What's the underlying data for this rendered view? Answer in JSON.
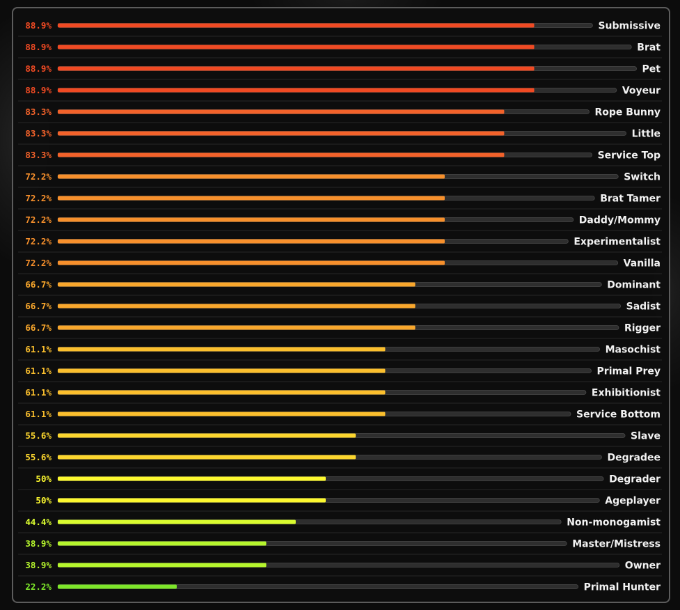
{
  "chart_data": {
    "type": "bar",
    "orientation": "horizontal",
    "title": "",
    "xlabel": "",
    "ylabel": "",
    "xlim": [
      0,
      100
    ],
    "grid": false,
    "legend": "none",
    "series": [
      {
        "name": "Submissive",
        "value": 88.9,
        "label": "88.9%",
        "color": "#f04a23"
      },
      {
        "name": "Brat",
        "value": 88.9,
        "label": "88.9%",
        "color": "#f04a23"
      },
      {
        "name": "Pet",
        "value": 88.9,
        "label": "88.9%",
        "color": "#f04a23"
      },
      {
        "name": "Voyeur",
        "value": 88.9,
        "label": "88.9%",
        "color": "#f04a23"
      },
      {
        "name": "Rope Bunny",
        "value": 83.3,
        "label": "83.3%",
        "color": "#f3622a"
      },
      {
        "name": "Little",
        "value": 83.3,
        "label": "83.3%",
        "color": "#f3622a"
      },
      {
        "name": "Service Top",
        "value": 83.3,
        "label": "83.3%",
        "color": "#f3622a"
      },
      {
        "name": "Switch",
        "value": 72.2,
        "label": "72.2%",
        "color": "#f7902c"
      },
      {
        "name": "Brat Tamer",
        "value": 72.2,
        "label": "72.2%",
        "color": "#f7902c"
      },
      {
        "name": "Daddy/Mommy",
        "value": 72.2,
        "label": "72.2%",
        "color": "#f7902c"
      },
      {
        "name": "Experimentalist",
        "value": 72.2,
        "label": "72.2%",
        "color": "#f7902c"
      },
      {
        "name": "Vanilla",
        "value": 72.2,
        "label": "72.2%",
        "color": "#f7902c"
      },
      {
        "name": "Dominant",
        "value": 66.7,
        "label": "66.7%",
        "color": "#f9a72c"
      },
      {
        "name": "Sadist",
        "value": 66.7,
        "label": "66.7%",
        "color": "#f9a72c"
      },
      {
        "name": "Rigger",
        "value": 66.7,
        "label": "66.7%",
        "color": "#f9a72c"
      },
      {
        "name": "Masochist",
        "value": 61.1,
        "label": "61.1%",
        "color": "#fbbf2d"
      },
      {
        "name": "Primal Prey",
        "value": 61.1,
        "label": "61.1%",
        "color": "#fbbf2d"
      },
      {
        "name": "Exhibitionist",
        "value": 61.1,
        "label": "61.1%",
        "color": "#fbbf2d"
      },
      {
        "name": "Service Bottom",
        "value": 61.1,
        "label": "61.1%",
        "color": "#fbbf2d"
      },
      {
        "name": "Slave",
        "value": 55.6,
        "label": "55.6%",
        "color": "#fcd62e"
      },
      {
        "name": "Degradee",
        "value": 55.6,
        "label": "55.6%",
        "color": "#fcd62e"
      },
      {
        "name": "Degrader",
        "value": 50,
        "label": "50%",
        "color": "#fcf82f"
      },
      {
        "name": "Ageplayer",
        "value": 50,
        "label": "50%",
        "color": "#fcf82f"
      },
      {
        "name": "Non-monogamist",
        "value": 44.4,
        "label": "44.4%",
        "color": "#d9fb2f"
      },
      {
        "name": "Master/Mistress",
        "value": 38.9,
        "label": "38.9%",
        "color": "#b6f62d"
      },
      {
        "name": "Owner",
        "value": 38.9,
        "label": "38.9%",
        "color": "#b6f62d"
      },
      {
        "name": "Primal Hunter",
        "value": 22.2,
        "label": "22.2%",
        "color": "#7ee72a"
      }
    ]
  },
  "colors": {
    "track": "#2e2e2e",
    "track_border": "#4a4a4a",
    "divider": "#262626",
    "label": "#f2f2f2"
  }
}
